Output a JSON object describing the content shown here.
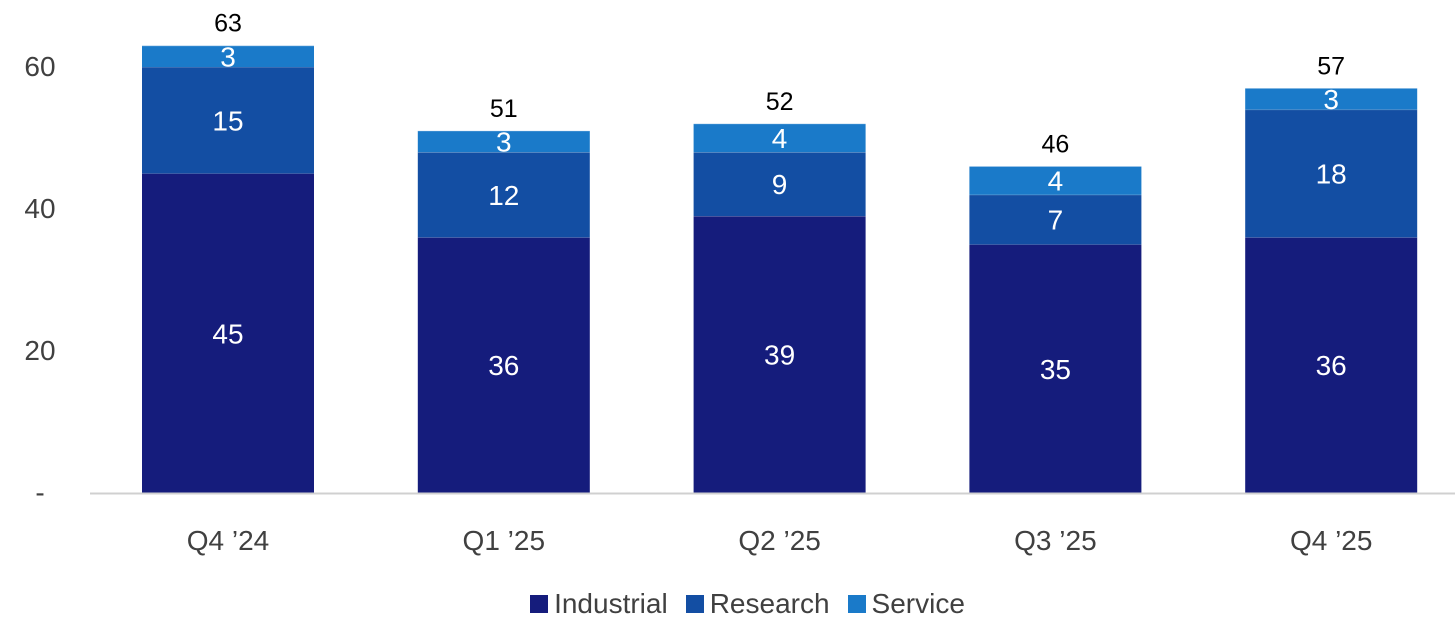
{
  "chart_data": {
    "type": "bar",
    "stacked": true,
    "categories": [
      "Q4 ’24",
      "Q1 ’25",
      "Q2 ’25",
      "Q3 ’25",
      "Q4 ’25"
    ],
    "series": [
      {
        "name": "Industrial",
        "values": [
          45,
          36,
          39,
          35,
          36
        ],
        "color": "#151c7c"
      },
      {
        "name": "Research",
        "values": [
          15,
          12,
          9,
          7,
          18
        ],
        "color": "#134ea3"
      },
      {
        "name": "Service",
        "values": [
          3,
          3,
          4,
          4,
          3
        ],
        "color": "#1a7ac9"
      }
    ],
    "totals": [
      63,
      51,
      52,
      46,
      57
    ],
    "y_ticks": [
      {
        "value": 0,
        "label": "-"
      },
      {
        "value": 20,
        "label": "20"
      },
      {
        "value": 40,
        "label": "40"
      },
      {
        "value": 60,
        "label": "60"
      }
    ],
    "ylim": [
      0,
      70
    ],
    "grid": false,
    "legend_position": "bottom-center",
    "title": "",
    "xlabel": "",
    "ylabel": ""
  }
}
